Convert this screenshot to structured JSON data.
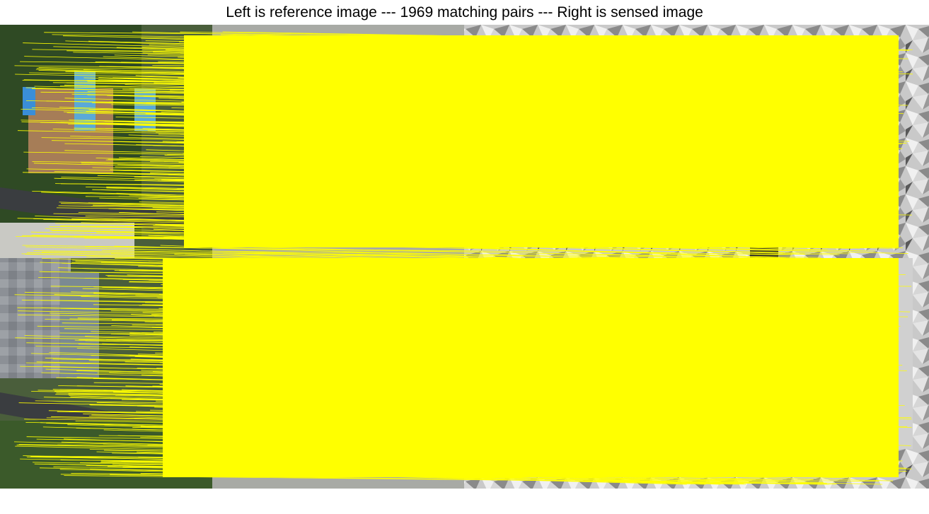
{
  "figure": {
    "title": "Left is reference image --- 1969 matching pairs --- Right is sensed image"
  },
  "match_line_color": "#ffff00",
  "left_panel_colors": {
    "vegetation": "#3b5a2a",
    "road": "#3a3d40",
    "soil": "#a67d57",
    "roof_blue": "#3a8ed8",
    "roof_gray": "#8c9096",
    "pavement": "#b9bcb6"
  },
  "right_panel_colors": {
    "relief_light": "#e8e8e8",
    "relief_mid": "#b8b8b8",
    "relief_dark": "#6a6a6a",
    "relief_shadow": "#2a2a2a"
  }
}
